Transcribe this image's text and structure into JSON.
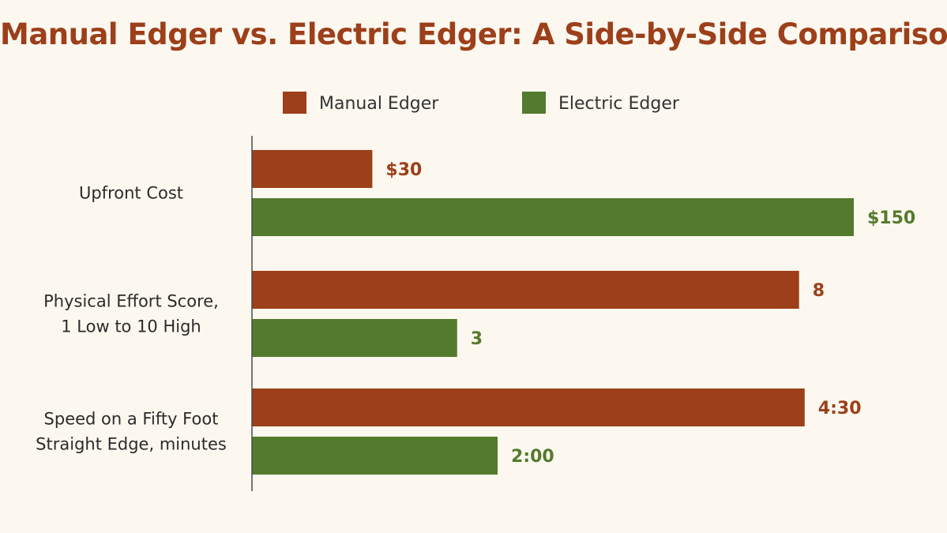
{
  "chart_data": {
    "type": "bar",
    "orientation": "horizontal",
    "title": "Manual Edger vs. Electric Edger: A Side-by-Side Comparison",
    "legend_position": "top",
    "grid": false,
    "categories": [
      [
        "Upfront Cost"
      ],
      [
        "Physical Effort Score,",
        "1 Low to 10 High"
      ],
      [
        "Speed on a Fifty Foot",
        "Straight Edge, minutes"
      ]
    ],
    "series": [
      {
        "name": "Manual Edger",
        "color": "#9c3f1a",
        "values": [
          30,
          8,
          4.5
        ],
        "labels": [
          "$30",
          "8",
          "4:30"
        ]
      },
      {
        "name": "Electric Edger",
        "color": "#547a2e",
        "values": [
          150,
          3,
          2
        ],
        "labels": [
          "$150",
          "3",
          "2:00"
        ]
      }
    ],
    "category_max": [
      150,
      8.8,
      4.9
    ]
  }
}
